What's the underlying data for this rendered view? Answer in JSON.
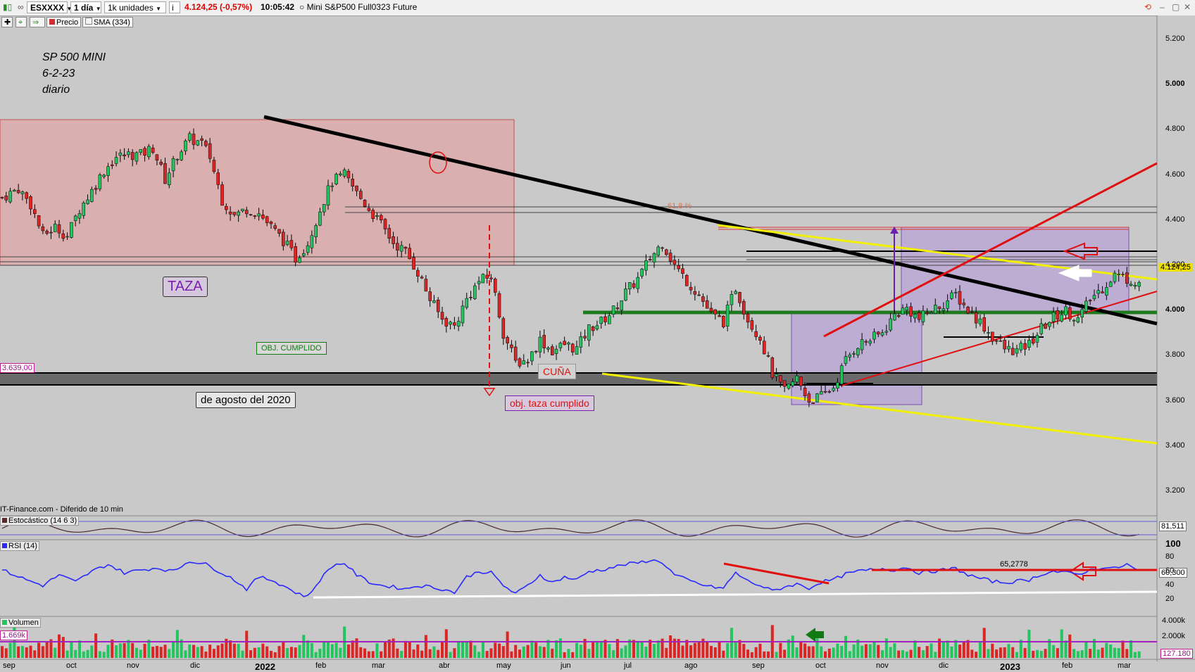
{
  "toolbar": {
    "symbol": "ESXXXX",
    "timeframe": "1 día",
    "units": "1k unidades",
    "info_icon": "info-icon",
    "last_change": "4.124,25 (-0,57%)",
    "time": "10:05:42",
    "instrument": "Mini S&P500 Full0323 Future",
    "toggles": {
      "price": "Precio",
      "sma": "SMA (334)"
    },
    "window_icons": [
      "refresh-icon",
      "minimize-icon",
      "restore-icon",
      "close-icon"
    ]
  },
  "colors": {
    "up": "#22c55e",
    "down": "#dc2626",
    "rsi": "#2a2aff",
    "pink_zone": "#e0a8a8",
    "violet_zone": "#b9a3d6"
  },
  "annotations": {
    "title_lines": [
      "SP 500 MINI",
      "6-2-23",
      "diario"
    ],
    "taza": "TAZA",
    "obj_cumplido": "OBJ. CUMPLIDO",
    "agosto": "de agosto del 2020",
    "cuna": "CUÑA",
    "obj_taza": "obj. taza cumplido",
    "fib": "61,8 %",
    "level_3639": "3.639,00",
    "last_price_tag": "4.124,25",
    "source": "IT-Finance.com - Diferido de 10 min"
  },
  "panels": {
    "stoch": {
      "label": "Estocástico (14 6 3)",
      "value": "81,511"
    },
    "rsi": {
      "label": "RSI (14)",
      "value": "60,300",
      "level_label": "65,2778"
    },
    "volume": {
      "label": "Volumen",
      "value": "1.669k",
      "last": "127.180"
    }
  },
  "chart_data": {
    "type": "candlestick",
    "y_axis": {
      "min": 3100,
      "max": 5250,
      "ticks": [
        "5.200",
        "5.000",
        "4.800",
        "4.600",
        "4.400",
        "4.200",
        "4.000",
        "3.800",
        "3.600",
        "3.400",
        "3.200"
      ]
    },
    "x_axis": {
      "labels": [
        "sep",
        "oct",
        "nov",
        "dic",
        "2022",
        "feb",
        "mar",
        "abr",
        "may",
        "jun",
        "jul",
        "ago",
        "sep",
        "oct",
        "nov",
        "dic",
        "2023",
        "feb",
        "mar"
      ]
    },
    "rsi_axis": {
      "ticks": [
        "100",
        "80",
        "60",
        "40",
        "20"
      ]
    },
    "volume_axis": {
      "ticks": [
        "4.000k",
        "2.000k"
      ]
    },
    "series": [
      {
        "kind": "close",
        "points": [
          [
            0,
            4500
          ],
          [
            4,
            4540
          ],
          [
            7,
            4470
          ],
          [
            10,
            4330
          ],
          [
            13,
            4370
          ],
          [
            16,
            4330
          ],
          [
            19,
            4450
          ],
          [
            22,
            4530
          ],
          [
            25,
            4620
          ],
          [
            28,
            4680
          ],
          [
            31,
            4690
          ],
          [
            34,
            4690
          ],
          [
            37,
            4720
          ],
          [
            40,
            4580
          ],
          [
            43,
            4690
          ],
          [
            46,
            4760
          ],
          [
            49,
            4740
          ],
          [
            51,
            4680
          ],
          [
            54,
            4490
          ],
          [
            57,
            4420
          ],
          [
            60,
            4450
          ],
          [
            63,
            4430
          ],
          [
            66,
            4370
          ],
          [
            69,
            4310
          ],
          [
            72,
            4230
          ],
          [
            75,
            4300
          ],
          [
            78,
            4450
          ],
          [
            81,
            4570
          ],
          [
            84,
            4600
          ],
          [
            87,
            4520
          ],
          [
            90,
            4450
          ],
          [
            93,
            4380
          ],
          [
            96,
            4300
          ],
          [
            99,
            4260
          ],
          [
            102,
            4170
          ],
          [
            105,
            4050
          ],
          [
            108,
            3960
          ],
          [
            111,
            3930
          ],
          [
            114,
            4050
          ],
          [
            117,
            4130
          ],
          [
            120,
            4150
          ],
          [
            123,
            3900
          ],
          [
            126,
            3770
          ],
          [
            129,
            3780
          ],
          [
            132,
            3870
          ],
          [
            135,
            3820
          ],
          [
            138,
            3850
          ],
          [
            141,
            3830
          ],
          [
            144,
            3920
          ],
          [
            147,
            3950
          ],
          [
            150,
            4000
          ],
          [
            153,
            4080
          ],
          [
            156,
            4140
          ],
          [
            159,
            4230
          ],
          [
            162,
            4300
          ],
          [
            165,
            4200
          ],
          [
            168,
            4130
          ],
          [
            171,
            4070
          ],
          [
            174,
            3980
          ],
          [
            177,
            3950
          ],
          [
            180,
            4100
          ],
          [
            183,
            3960
          ],
          [
            186,
            3880
          ],
          [
            189,
            3720
          ],
          [
            192,
            3640
          ],
          [
            195,
            3700
          ],
          [
            198,
            3600
          ],
          [
            201,
            3620
          ],
          [
            204,
            3660
          ],
          [
            207,
            3780
          ],
          [
            210,
            3850
          ],
          [
            213,
            3870
          ],
          [
            216,
            3900
          ],
          [
            219,
            3980
          ],
          [
            222,
            4010
          ],
          [
            225,
            3960
          ],
          [
            228,
            4000
          ],
          [
            231,
            4030
          ],
          [
            234,
            4070
          ],
          [
            237,
            4000
          ],
          [
            240,
            3950
          ],
          [
            243,
            3880
          ],
          [
            246,
            3830
          ],
          [
            249,
            3820
          ],
          [
            252,
            3850
          ],
          [
            255,
            3920
          ],
          [
            258,
            3970
          ],
          [
            261,
            4000
          ],
          [
            264,
            3960
          ],
          [
            267,
            4050
          ],
          [
            270,
            4100
          ],
          [
            273,
            4160
          ],
          [
            276,
            4140
          ],
          [
            279,
            4124
          ]
        ]
      },
      {
        "kind": "rsi",
        "points": [
          [
            0,
            62
          ],
          [
            6,
            48
          ],
          [
            10,
            40
          ],
          [
            14,
            55
          ],
          [
            18,
            45
          ],
          [
            22,
            60
          ],
          [
            26,
            70
          ],
          [
            30,
            58
          ],
          [
            34,
            62
          ],
          [
            38,
            65
          ],
          [
            42,
            60
          ],
          [
            46,
            75
          ],
          [
            50,
            70
          ],
          [
            54,
            58
          ],
          [
            57,
            48
          ],
          [
            60,
            35
          ],
          [
            63,
            52
          ],
          [
            66,
            48
          ],
          [
            69,
            40
          ],
          [
            72,
            30
          ],
          [
            75,
            24
          ],
          [
            78,
            48
          ],
          [
            81,
            68
          ],
          [
            84,
            72
          ],
          [
            87,
            55
          ],
          [
            90,
            45
          ],
          [
            93,
            40
          ],
          [
            96,
            38
          ],
          [
            99,
            35
          ],
          [
            102,
            40
          ],
          [
            105,
            38
          ],
          [
            108,
            35
          ],
          [
            111,
            30
          ],
          [
            114,
            52
          ],
          [
            117,
            60
          ],
          [
            120,
            58
          ],
          [
            123,
            40
          ],
          [
            126,
            28
          ],
          [
            129,
            40
          ],
          [
            132,
            55
          ],
          [
            135,
            44
          ],
          [
            138,
            52
          ],
          [
            141,
            48
          ],
          [
            144,
            60
          ],
          [
            147,
            62
          ],
          [
            150,
            66
          ],
          [
            153,
            70
          ],
          [
            156,
            72
          ],
          [
            159,
            76
          ],
          [
            162,
            73
          ],
          [
            165,
            55
          ],
          [
            168,
            48
          ],
          [
            171,
            42
          ],
          [
            174,
            38
          ],
          [
            177,
            36
          ],
          [
            180,
            58
          ],
          [
            183,
            46
          ],
          [
            186,
            40
          ],
          [
            189,
            32
          ],
          [
            192,
            38
          ],
          [
            195,
            42
          ],
          [
            198,
            36
          ],
          [
            201,
            45
          ],
          [
            204,
            48
          ],
          [
            207,
            56
          ],
          [
            210,
            60
          ],
          [
            213,
            62
          ],
          [
            216,
            64
          ],
          [
            219,
            62
          ],
          [
            222,
            66
          ],
          [
            225,
            58
          ],
          [
            228,
            60
          ],
          [
            231,
            62
          ],
          [
            234,
            64
          ],
          [
            237,
            55
          ],
          [
            240,
            50
          ],
          [
            243,
            46
          ],
          [
            246,
            44
          ],
          [
            249,
            46
          ],
          [
            252,
            48
          ],
          [
            255,
            56
          ],
          [
            258,
            60
          ],
          [
            261,
            58
          ],
          [
            264,
            56
          ],
          [
            267,
            62
          ],
          [
            270,
            66
          ],
          [
            273,
            64
          ],
          [
            276,
            70
          ],
          [
            279,
            60
          ]
        ]
      }
    ],
    "levels": [
      3639,
      4124.25
    ],
    "rsi_level": 65.2778
  }
}
